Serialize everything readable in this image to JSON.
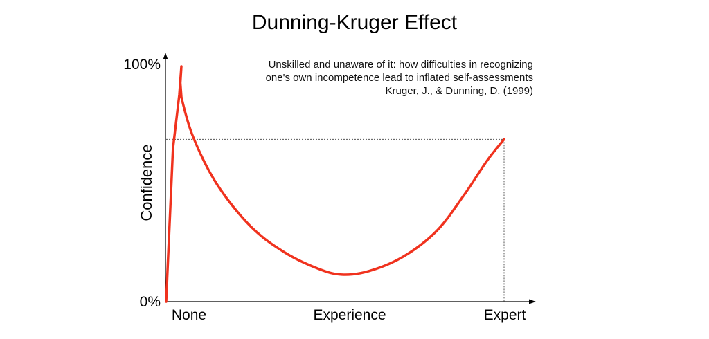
{
  "chart_data": {
    "type": "line",
    "title": "Dunning-Kruger Effect",
    "ylabel": "Confidence",
    "xlabel": "Experience",
    "x_categories": [
      "None",
      "Experience",
      "Expert"
    ],
    "y_ticks": [
      "100%",
      "0%"
    ],
    "ylim": [
      0,
      100
    ],
    "xlim": [
      0,
      100
    ],
    "annotation_lines": [
      "Unskilled and unaware of it: how difficulties in recognizing",
      "one's own incompetence lead to inflated self-assessments",
      "Kruger, J., & Dunning, D. (1999)"
    ],
    "reference_level": 69,
    "series": [
      {
        "color": "#f0321e",
        "points": [
          [
            0,
            0
          ],
          [
            2,
            65
          ],
          [
            3.9,
            88
          ],
          [
            4.5,
            100
          ],
          [
            4.5,
            100
          ],
          [
            4.2,
            93
          ],
          [
            4.5,
            87
          ],
          [
            8,
            70
          ],
          [
            15,
            50
          ],
          [
            25,
            32
          ],
          [
            35,
            21
          ],
          [
            45,
            14
          ],
          [
            52,
            11.5
          ],
          [
            60,
            13
          ],
          [
            70,
            19
          ],
          [
            80,
            30
          ],
          [
            88,
            45
          ],
          [
            95,
            60
          ],
          [
            100,
            69
          ]
        ]
      }
    ],
    "colors": {
      "curve": "#f0321e",
      "axis": "#000000",
      "guide": "#555555"
    }
  }
}
